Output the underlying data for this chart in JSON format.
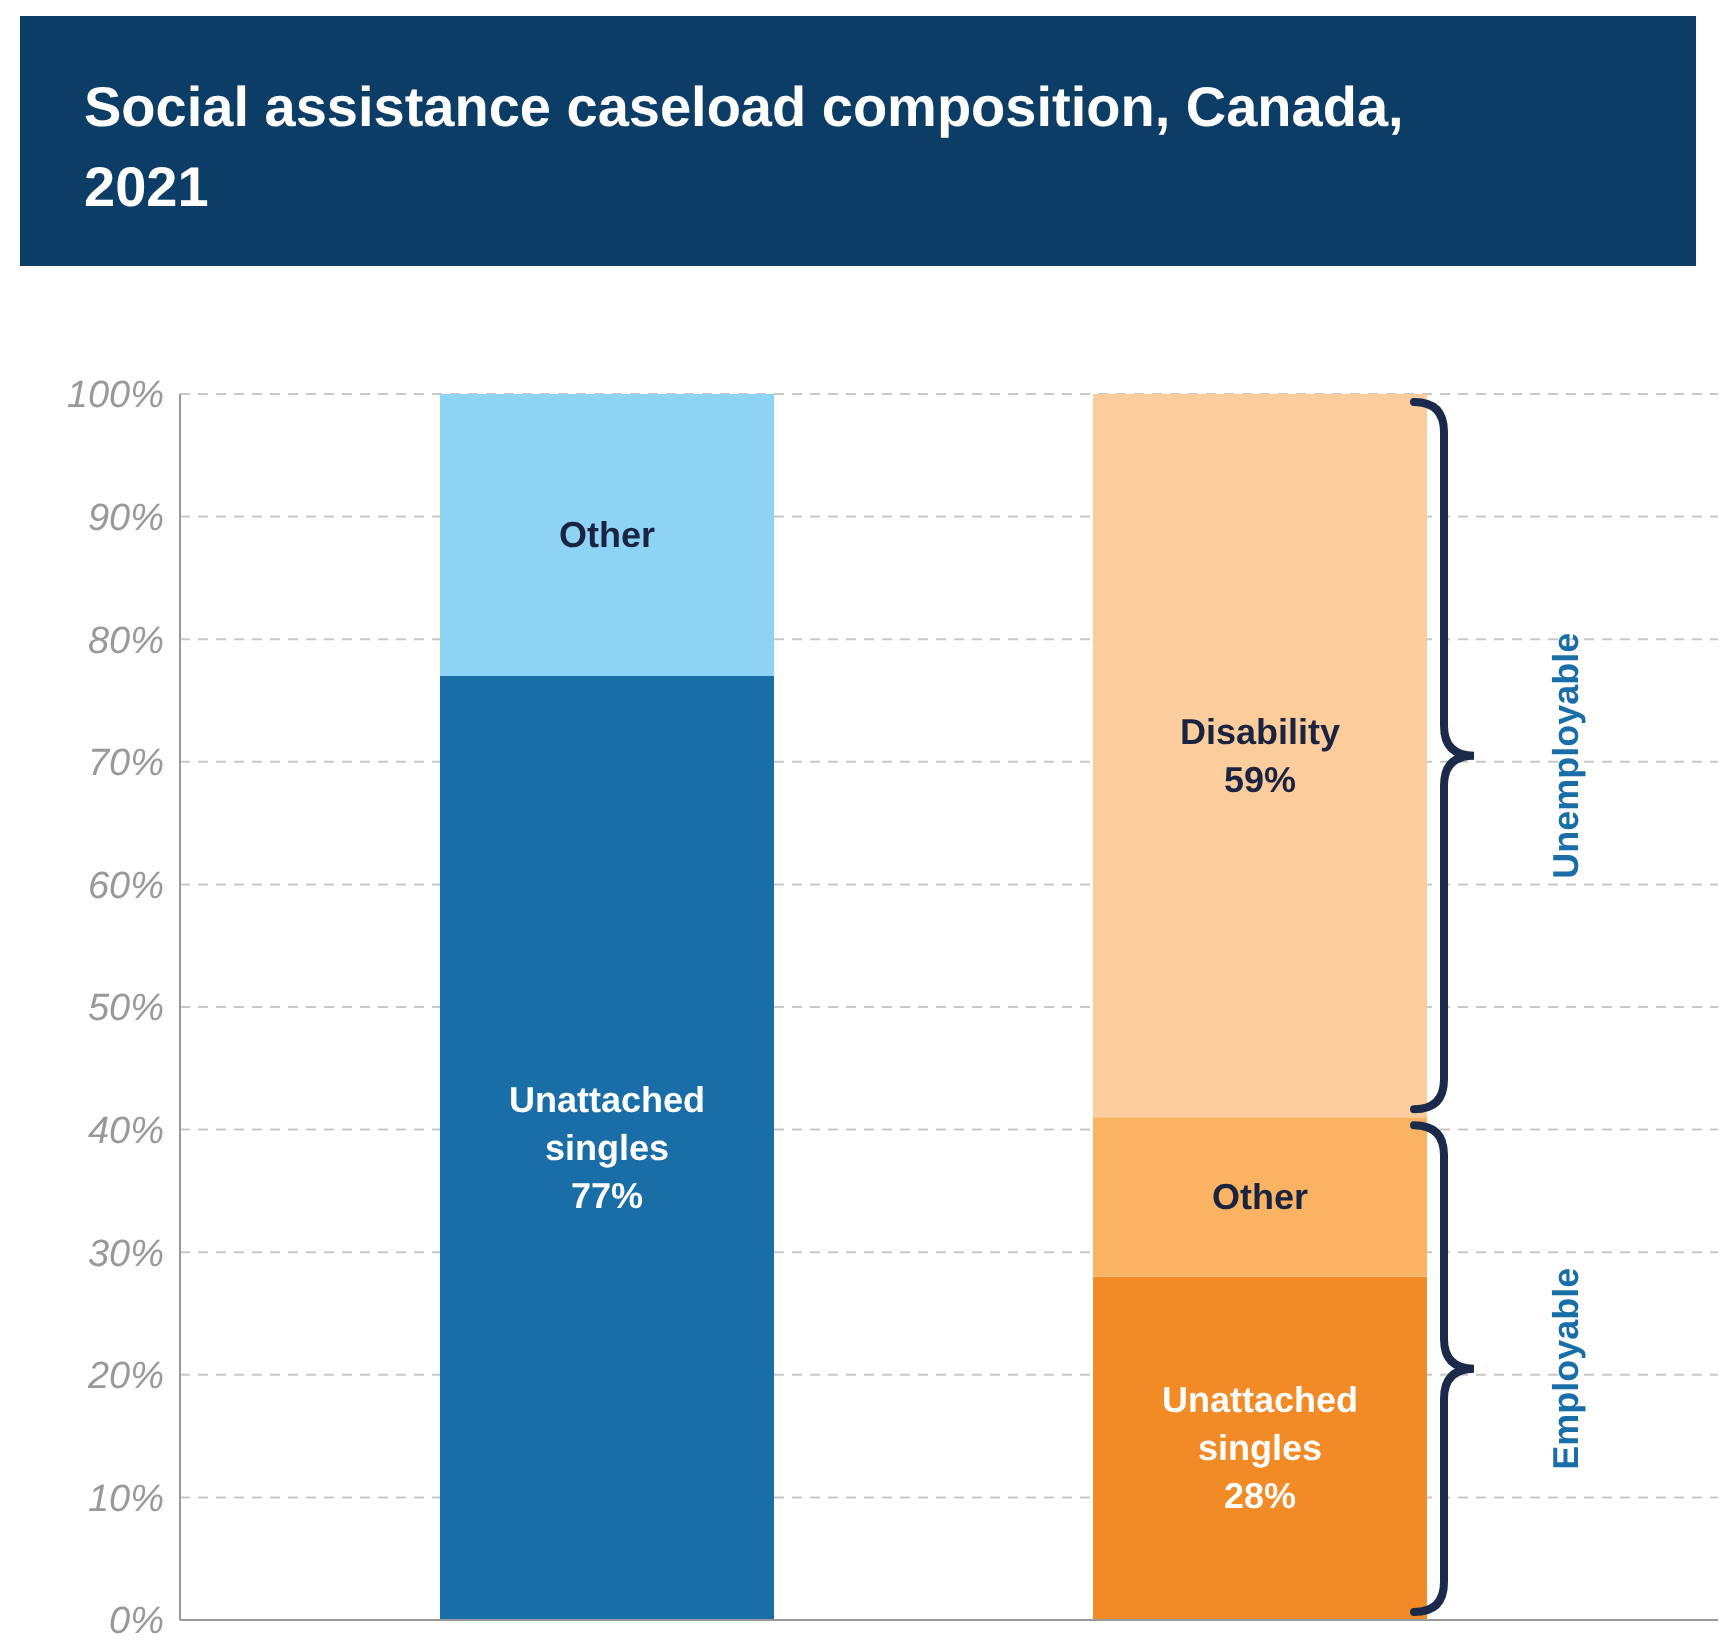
{
  "chart_data": {
    "type": "bar",
    "title": "Social assistance caseload composition, Canada, 2021",
    "categories": [
      null,
      null
    ],
    "stacked": true,
    "series": [
      {
        "values": [
          77,
          28
        ],
        "colors": [
          "#1a6ea8",
          "#f28a26"
        ],
        "value_labels": [
          "Unattached singles 77%",
          "Unattached singles 28%"
        ]
      },
      {
        "values": [
          23,
          13
        ],
        "colors": [
          "#8dd3f3",
          "#f9b363"
        ],
        "value_labels": [
          "Other",
          "Other"
        ]
      },
      {
        "values": [
          null,
          59
        ],
        "colors": [
          null,
          "#fbcd9c"
        ],
        "value_labels": [
          null,
          "Disability 59%"
        ]
      }
    ],
    "ylim": [
      0,
      100
    ],
    "yticks": [
      {
        "value": 0,
        "label": "0%"
      },
      {
        "value": 10,
        "label": "10%"
      },
      {
        "value": 20,
        "label": "20%"
      },
      {
        "value": 30,
        "label": "30%"
      },
      {
        "value": 40,
        "label": "40%"
      },
      {
        "value": 50,
        "label": "50%"
      },
      {
        "value": 60,
        "label": "60%"
      },
      {
        "value": 70,
        "label": "70%"
      },
      {
        "value": 80,
        "label": "80%"
      },
      {
        "value": 90,
        "label": "90%"
      },
      {
        "value": 100,
        "label": "100%"
      }
    ],
    "grid": "y",
    "legend": false,
    "annotations": [
      "Unemployable",
      "Employable"
    ]
  }
}
